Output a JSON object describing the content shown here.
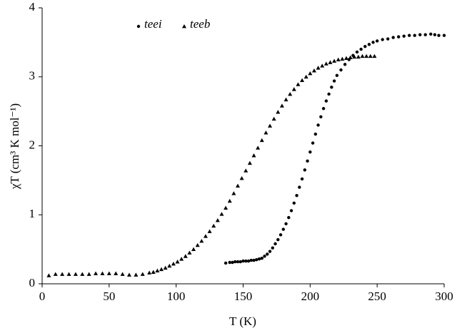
{
  "chart_data": {
    "type": "scatter",
    "xlabel": "T (K)",
    "ylabel": "χT (cm³ K mol⁻¹)",
    "xlim": [
      0,
      300
    ],
    "xticks": [
      0,
      50,
      100,
      150,
      200,
      250,
      300
    ],
    "ylim": [
      0,
      4
    ],
    "yticks": [
      0,
      1,
      2,
      3,
      4
    ],
    "grid": false,
    "series": [
      {
        "name": "teei",
        "color": "#000000",
        "marker": "circle",
        "x": [
          137,
          140,
          142,
          144,
          146,
          148,
          150,
          152,
          154,
          156,
          158,
          160,
          162,
          164,
          166,
          168,
          170,
          172,
          174,
          176,
          178,
          180,
          182,
          184,
          186,
          188,
          190,
          192,
          194,
          196,
          198,
          200,
          202,
          204,
          206,
          208,
          210,
          212,
          214,
          216,
          218,
          220,
          223,
          226,
          229,
          232,
          235,
          238,
          241,
          244,
          247,
          250,
          254,
          258,
          262,
          266,
          270,
          274,
          278,
          282,
          286,
          290,
          293,
          296,
          300
        ],
        "values": [
          0.3,
          0.31,
          0.31,
          0.32,
          0.32,
          0.32,
          0.33,
          0.33,
          0.33,
          0.34,
          0.34,
          0.35,
          0.36,
          0.37,
          0.4,
          0.43,
          0.47,
          0.52,
          0.58,
          0.64,
          0.71,
          0.79,
          0.87,
          0.96,
          1.06,
          1.17,
          1.28,
          1.4,
          1.52,
          1.65,
          1.78,
          1.91,
          2.04,
          2.17,
          2.3,
          2.42,
          2.54,
          2.65,
          2.75,
          2.85,
          2.94,
          3.02,
          3.1,
          3.18,
          3.25,
          3.31,
          3.36,
          3.4,
          3.44,
          3.47,
          3.5,
          3.52,
          3.54,
          3.55,
          3.57,
          3.58,
          3.59,
          3.6,
          3.6,
          3.61,
          3.61,
          3.62,
          3.61,
          3.6,
          3.6
        ]
      },
      {
        "name": "teeb",
        "color": "#000000",
        "marker": "triangle",
        "x": [
          5,
          10,
          15,
          20,
          25,
          30,
          35,
          40,
          45,
          50,
          55,
          60,
          65,
          70,
          75,
          80,
          83,
          86,
          89,
          92,
          95,
          98,
          101,
          104,
          107,
          110,
          113,
          116,
          119,
          122,
          125,
          128,
          131,
          134,
          137,
          140,
          143,
          146,
          149,
          152,
          155,
          158,
          161,
          164,
          167,
          170,
          173,
          176,
          179,
          182,
          185,
          188,
          191,
          194,
          197,
          200,
          203,
          206,
          209,
          212,
          215,
          218,
          221,
          224,
          227,
          230,
          233,
          236,
          239,
          242,
          245,
          248
        ],
        "values": [
          0.12,
          0.14,
          0.14,
          0.14,
          0.14,
          0.14,
          0.14,
          0.15,
          0.15,
          0.15,
          0.15,
          0.14,
          0.13,
          0.13,
          0.14,
          0.16,
          0.17,
          0.19,
          0.21,
          0.23,
          0.26,
          0.29,
          0.32,
          0.36,
          0.4,
          0.45,
          0.5,
          0.56,
          0.62,
          0.69,
          0.76,
          0.84,
          0.92,
          1.01,
          1.1,
          1.2,
          1.31,
          1.42,
          1.53,
          1.64,
          1.75,
          1.86,
          1.97,
          2.08,
          2.19,
          2.29,
          2.39,
          2.49,
          2.58,
          2.67,
          2.75,
          2.82,
          2.89,
          2.95,
          3.0,
          3.05,
          3.09,
          3.13,
          3.16,
          3.19,
          3.21,
          3.23,
          3.25,
          3.26,
          3.27,
          3.28,
          3.29,
          3.29,
          3.3,
          3.3,
          3.3,
          3.3
        ]
      }
    ]
  }
}
